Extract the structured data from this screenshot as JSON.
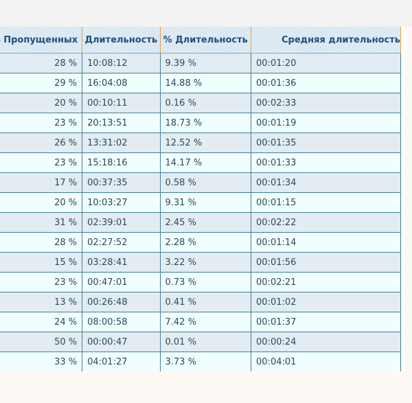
{
  "table": {
    "headers": [
      "% Пропущенных",
      "Длительность",
      "% Длительность",
      "Средняя длительность"
    ],
    "rows": [
      {
        "missed_pct": "28 %",
        "duration": "10:08:12",
        "duration_pct": "9.39 %",
        "avg_duration": "00:01:20"
      },
      {
        "missed_pct": "29 %",
        "duration": "16:04:08",
        "duration_pct": "14.88 %",
        "avg_duration": "00:01:36"
      },
      {
        "missed_pct": "20 %",
        "duration": "00:10:11",
        "duration_pct": "0.16 %",
        "avg_duration": "00:02:33"
      },
      {
        "missed_pct": "23 %",
        "duration": "20:13:51",
        "duration_pct": "18.73 %",
        "avg_duration": "00:01:19"
      },
      {
        "missed_pct": "26 %",
        "duration": "13:31:02",
        "duration_pct": "12.52 %",
        "avg_duration": "00:01:35"
      },
      {
        "missed_pct": "23 %",
        "duration": "15:18:16",
        "duration_pct": "14.17 %",
        "avg_duration": "00:01:33"
      },
      {
        "missed_pct": "17 %",
        "duration": "00:37:35",
        "duration_pct": "0.58 %",
        "avg_duration": "00:01:34"
      },
      {
        "missed_pct": "20 %",
        "duration": "10:03:27",
        "duration_pct": "9.31 %",
        "avg_duration": "00:01:15"
      },
      {
        "missed_pct": "31 %",
        "duration": "02:39:01",
        "duration_pct": "2.45 %",
        "avg_duration": "00:02:22"
      },
      {
        "missed_pct": "28 %",
        "duration": "02:27:52",
        "duration_pct": "2.28 %",
        "avg_duration": "00:01:14"
      },
      {
        "missed_pct": "15 %",
        "duration": "03:28:41",
        "duration_pct": "3.22 %",
        "avg_duration": "00:01:56"
      },
      {
        "missed_pct": "23 %",
        "duration": "00:47:01",
        "duration_pct": "0.73 %",
        "avg_duration": "00:02:21"
      },
      {
        "missed_pct": "13 %",
        "duration": "00:26:48",
        "duration_pct": "0.41 %",
        "avg_duration": "00:01:02"
      },
      {
        "missed_pct": "24 %",
        "duration": "08:00:58",
        "duration_pct": "7.42 %",
        "avg_duration": "00:01:37"
      },
      {
        "missed_pct": "50 %",
        "duration": "00:00:47",
        "duration_pct": "0.01 %",
        "avg_duration": "00:00:24"
      },
      {
        "missed_pct": "33 %",
        "duration": "04:01:27",
        "duration_pct": "3.73 %",
        "avg_duration": "00:04:01"
      }
    ]
  },
  "colors": {
    "header_bg": "#d4e4f0",
    "header_text": "#1f4f7a",
    "header_separator": "#e0a040",
    "row_odd": "#e2ecf2",
    "row_even": "#f0fefe",
    "cell_border": "#3f7f99"
  }
}
